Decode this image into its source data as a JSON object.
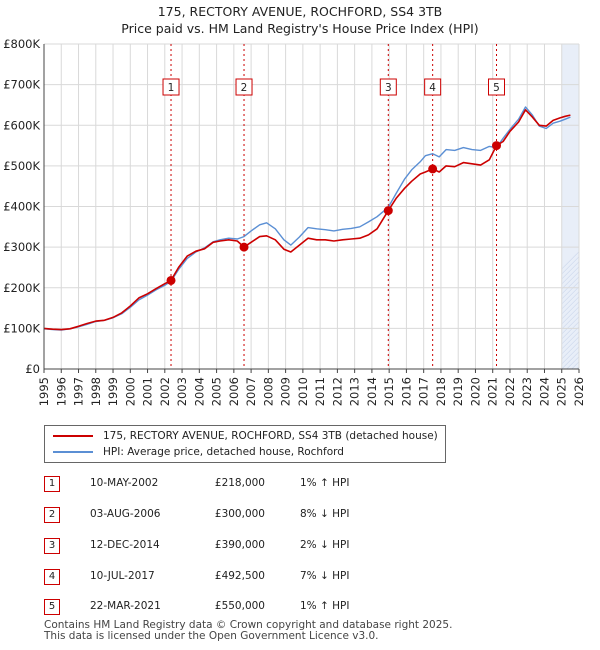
{
  "header": {
    "title": "175, RECTORY AVENUE, ROCHFORD, SS4 3TB",
    "subtitle": "Price paid vs. HM Land Registry's House Price Index (HPI)"
  },
  "colors": {
    "price_line": "#cc0000",
    "hpi_line": "#5b8fd4",
    "grid": "#d9d9d9",
    "shade": "#e8eef8",
    "marker": "#cc0000"
  },
  "chart_data": {
    "type": "line",
    "xlim": [
      1995,
      2026
    ],
    "ylim": [
      0,
      800000
    ],
    "x_ticks": [
      "1995",
      "1996",
      "1997",
      "1998",
      "1999",
      "2000",
      "2001",
      "2002",
      "2003",
      "2004",
      "2005",
      "2006",
      "2007",
      "2008",
      "2009",
      "2010",
      "2011",
      "2012",
      "2013",
      "2014",
      "2015",
      "2016",
      "2017",
      "2018",
      "2019",
      "2020",
      "2021",
      "2022",
      "2023",
      "2024",
      "2025",
      "2026"
    ],
    "y_ticks": [
      {
        "value": 0,
        "label": "£0"
      },
      {
        "value": 100000,
        "label": "£100K"
      },
      {
        "value": 200000,
        "label": "£200K"
      },
      {
        "value": 300000,
        "label": "£300K"
      },
      {
        "value": 400000,
        "label": "£400K"
      },
      {
        "value": 500000,
        "label": "£500K"
      },
      {
        "value": 600000,
        "label": "£600K"
      },
      {
        "value": 700000,
        "label": "£700K"
      },
      {
        "value": 800000,
        "label": "£800K"
      }
    ],
    "forecast_start": 2025.0,
    "series": [
      {
        "name": "175, RECTORY AVENUE, ROCHFORD, SS4 3TB (detached house)",
        "points": [
          [
            1995.0,
            100000
          ],
          [
            1995.5,
            98000
          ],
          [
            1996.0,
            97000
          ],
          [
            1996.5,
            99000
          ],
          [
            1997.0,
            105000
          ],
          [
            1997.5,
            112000
          ],
          [
            1998.0,
            118000
          ],
          [
            1998.5,
            120000
          ],
          [
            1999.0,
            127000
          ],
          [
            1999.5,
            138000
          ],
          [
            2000.0,
            155000
          ],
          [
            2000.5,
            175000
          ],
          [
            2001.0,
            185000
          ],
          [
            2001.5,
            198000
          ],
          [
            2002.0,
            210000
          ],
          [
            2002.36,
            218000
          ],
          [
            2002.8,
            250000
          ],
          [
            2003.3,
            278000
          ],
          [
            2003.8,
            290000
          ],
          [
            2004.3,
            296000
          ],
          [
            2004.8,
            312000
          ],
          [
            2005.2,
            315000
          ],
          [
            2005.7,
            318000
          ],
          [
            2006.2,
            315000
          ],
          [
            2006.59,
            300000
          ],
          [
            2007.0,
            312000
          ],
          [
            2007.5,
            326000
          ],
          [
            2007.9,
            328000
          ],
          [
            2008.4,
            318000
          ],
          [
            2008.9,
            295000
          ],
          [
            2009.3,
            288000
          ],
          [
            2009.8,
            305000
          ],
          [
            2010.3,
            322000
          ],
          [
            2010.8,
            318000
          ],
          [
            2011.3,
            318000
          ],
          [
            2011.8,
            315000
          ],
          [
            2012.3,
            318000
          ],
          [
            2012.8,
            320000
          ],
          [
            2013.3,
            322000
          ],
          [
            2013.8,
            330000
          ],
          [
            2014.3,
            345000
          ],
          [
            2014.95,
            390000
          ],
          [
            2015.4,
            420000
          ],
          [
            2015.9,
            445000
          ],
          [
            2016.3,
            462000
          ],
          [
            2016.8,
            480000
          ],
          [
            2017.1,
            485000
          ],
          [
            2017.52,
            492500
          ],
          [
            2017.9,
            485000
          ],
          [
            2018.3,
            500000
          ],
          [
            2018.8,
            498000
          ],
          [
            2019.3,
            508000
          ],
          [
            2019.8,
            505000
          ],
          [
            2020.3,
            502000
          ],
          [
            2020.8,
            515000
          ],
          [
            2021.22,
            550000
          ],
          [
            2021.6,
            560000
          ],
          [
            2022.0,
            585000
          ],
          [
            2022.5,
            608000
          ],
          [
            2022.9,
            638000
          ],
          [
            2023.3,
            620000
          ],
          [
            2023.7,
            600000
          ],
          [
            2024.1,
            598000
          ],
          [
            2024.5,
            612000
          ],
          [
            2024.9,
            618000
          ],
          [
            2025.2,
            622000
          ],
          [
            2025.5,
            625000
          ]
        ]
      },
      {
        "name": "HPI: Average price, detached house, Rochford",
        "points": [
          [
            1995.0,
            99000
          ],
          [
            1995.5,
            97000
          ],
          [
            1996.0,
            96000
          ],
          [
            1996.5,
            99000
          ],
          [
            1997.0,
            104000
          ],
          [
            1997.5,
            110000
          ],
          [
            1998.0,
            117000
          ],
          [
            1998.5,
            120000
          ],
          [
            1999.0,
            126000
          ],
          [
            1999.5,
            136000
          ],
          [
            2000.0,
            152000
          ],
          [
            2000.5,
            170000
          ],
          [
            2001.0,
            182000
          ],
          [
            2001.5,
            195000
          ],
          [
            2002.0,
            206000
          ],
          [
            2002.36,
            216000
          ],
          [
            2002.8,
            245000
          ],
          [
            2003.3,
            272000
          ],
          [
            2003.8,
            288000
          ],
          [
            2004.3,
            298000
          ],
          [
            2004.8,
            313000
          ],
          [
            2005.2,
            318000
          ],
          [
            2005.7,
            322000
          ],
          [
            2006.2,
            320000
          ],
          [
            2006.59,
            326000
          ],
          [
            2007.0,
            340000
          ],
          [
            2007.5,
            355000
          ],
          [
            2007.9,
            360000
          ],
          [
            2008.4,
            345000
          ],
          [
            2008.9,
            318000
          ],
          [
            2009.3,
            305000
          ],
          [
            2009.8,
            325000
          ],
          [
            2010.3,
            348000
          ],
          [
            2010.8,
            345000
          ],
          [
            2011.3,
            343000
          ],
          [
            2011.8,
            340000
          ],
          [
            2012.3,
            344000
          ],
          [
            2012.8,
            346000
          ],
          [
            2013.3,
            350000
          ],
          [
            2013.8,
            362000
          ],
          [
            2014.3,
            375000
          ],
          [
            2014.95,
            398000
          ],
          [
            2015.4,
            432000
          ],
          [
            2015.9,
            468000
          ],
          [
            2016.3,
            490000
          ],
          [
            2016.8,
            510000
          ],
          [
            2017.1,
            525000
          ],
          [
            2017.52,
            530000
          ],
          [
            2017.9,
            522000
          ],
          [
            2018.3,
            540000
          ],
          [
            2018.8,
            538000
          ],
          [
            2019.3,
            545000
          ],
          [
            2019.8,
            540000
          ],
          [
            2020.3,
            538000
          ],
          [
            2020.8,
            548000
          ],
          [
            2021.22,
            545000
          ],
          [
            2021.6,
            568000
          ],
          [
            2022.0,
            590000
          ],
          [
            2022.5,
            615000
          ],
          [
            2022.9,
            645000
          ],
          [
            2023.3,
            625000
          ],
          [
            2023.7,
            598000
          ],
          [
            2024.1,
            592000
          ],
          [
            2024.5,
            605000
          ],
          [
            2024.9,
            610000
          ],
          [
            2025.2,
            615000
          ],
          [
            2025.5,
            620000
          ]
        ]
      }
    ],
    "sales": [
      {
        "num": "1",
        "x": 2002.36,
        "price": 218000
      },
      {
        "num": "2",
        "x": 2006.59,
        "price": 300000
      },
      {
        "num": "3",
        "x": 2014.95,
        "price": 390000
      },
      {
        "num": "4",
        "x": 2017.52,
        "price": 492500
      },
      {
        "num": "5",
        "x": 2021.22,
        "price": 550000
      }
    ]
  },
  "legend": {
    "items": [
      {
        "label": "175, RECTORY AVENUE, ROCHFORD, SS4 3TB (detached house)",
        "color": "#cc0000"
      },
      {
        "label": "HPI: Average price, detached house, Rochford",
        "color": "#5b8fd4"
      }
    ]
  },
  "sales_table": [
    {
      "num": "1",
      "date": "10-MAY-2002",
      "price": "£218,000",
      "hpi": "1% ↑ HPI"
    },
    {
      "num": "2",
      "date": "03-AUG-2006",
      "price": "£300,000",
      "hpi": "8% ↓ HPI"
    },
    {
      "num": "3",
      "date": "12-DEC-2014",
      "price": "£390,000",
      "hpi": "2% ↓ HPI"
    },
    {
      "num": "4",
      "date": "10-JUL-2017",
      "price": "£492,500",
      "hpi": "7% ↓ HPI"
    },
    {
      "num": "5",
      "date": "22-MAR-2021",
      "price": "£550,000",
      "hpi": "1% ↑ HPI"
    }
  ],
  "footer": {
    "line1": "Contains HM Land Registry data © Crown copyright and database right 2025.",
    "line2": "This data is licensed under the Open Government Licence v3.0."
  }
}
